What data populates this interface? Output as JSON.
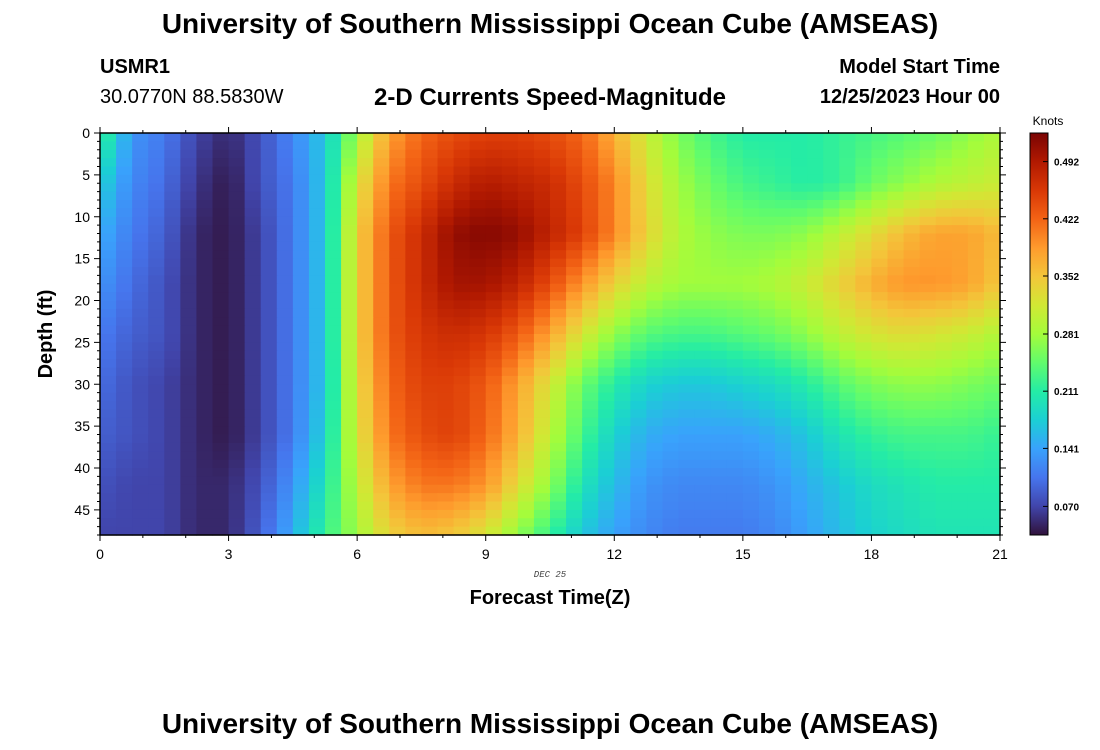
{
  "header": {
    "title": "University of Southern Mississippi Ocean Cube (AMSEAS)",
    "station_id": "USMR1",
    "coordinates": "30.0770N  88.5830W",
    "subtitle": "2-D Currents Speed-Magnitude",
    "model_start_label": "Model Start Time",
    "model_start_value": "12/25/2023 Hour 00"
  },
  "footer": {
    "title_repeat": "University of Southern Mississippi Ocean Cube (AMSEAS)"
  },
  "chart_data": {
    "type": "heatmap",
    "title": "2-D Currents Speed-Magnitude",
    "xlabel": "Forecast Time(Z)",
    "ylabel": "Depth (ft)",
    "x_date_label": "DEC 25",
    "xlim": [
      0,
      21
    ],
    "ylim": [
      0,
      48
    ],
    "x_ticks": [
      0,
      3,
      6,
      9,
      12,
      15,
      18,
      21
    ],
    "y_ticks": [
      0,
      5,
      10,
      15,
      20,
      25,
      30,
      35,
      40,
      45
    ],
    "colorbar": {
      "label": "Knots",
      "range": [
        0.035,
        0.527
      ],
      "ticks": [
        "0.070",
        "0.141",
        "0.211",
        "0.281",
        "0.352",
        "0.422",
        "0.492"
      ],
      "colormap": [
        "#30123b",
        "#4145ab",
        "#4675ed",
        "#39a2fc",
        "#1bcfd4",
        "#24eca6",
        "#61fc6c",
        "#a4fc3b",
        "#d1e834",
        "#f3c63a",
        "#fe9b2d",
        "#f36315",
        "#d93806",
        "#b11901",
        "#7a0403"
      ]
    },
    "times_hr": [
      0,
      0.75,
      1.5,
      2.25,
      3,
      3.75,
      4.5,
      5.25,
      6,
      6.75,
      7.5,
      8.25,
      9,
      9.75,
      10.5,
      11.25,
      12,
      12.75,
      13.5,
      14.25,
      15,
      15.75,
      16.5,
      17.25,
      18,
      18.75,
      19.5,
      20.25,
      21
    ],
    "depths_ft": [
      0,
      6,
      12,
      18,
      24,
      30,
      36,
      42,
      48
    ],
    "speed_knots": [
      [
        0.23,
        0.13,
        0.11,
        0.07,
        0.05,
        0.08,
        0.12,
        0.17,
        0.28,
        0.38,
        0.42,
        0.44,
        0.45,
        0.45,
        0.44,
        0.42,
        0.37,
        0.31,
        0.26,
        0.23,
        0.21,
        0.21,
        0.21,
        0.22,
        0.23,
        0.24,
        0.25,
        0.27,
        0.29
      ],
      [
        0.18,
        0.12,
        0.1,
        0.06,
        0.04,
        0.08,
        0.11,
        0.17,
        0.32,
        0.41,
        0.44,
        0.47,
        0.49,
        0.48,
        0.47,
        0.44,
        0.4,
        0.33,
        0.28,
        0.25,
        0.23,
        0.22,
        0.21,
        0.22,
        0.25,
        0.27,
        0.29,
        0.3,
        0.31
      ],
      [
        0.15,
        0.11,
        0.09,
        0.05,
        0.04,
        0.07,
        0.11,
        0.17,
        0.34,
        0.43,
        0.47,
        0.51,
        0.52,
        0.51,
        0.48,
        0.45,
        0.4,
        0.34,
        0.29,
        0.27,
        0.26,
        0.26,
        0.27,
        0.3,
        0.33,
        0.36,
        0.38,
        0.38,
        0.36
      ],
      [
        0.13,
        0.1,
        0.08,
        0.05,
        0.04,
        0.07,
        0.11,
        0.17,
        0.34,
        0.43,
        0.47,
        0.5,
        0.5,
        0.48,
        0.44,
        0.39,
        0.34,
        0.3,
        0.28,
        0.28,
        0.28,
        0.29,
        0.31,
        0.34,
        0.37,
        0.39,
        0.39,
        0.38,
        0.35
      ],
      [
        0.11,
        0.09,
        0.08,
        0.05,
        0.04,
        0.07,
        0.11,
        0.17,
        0.34,
        0.43,
        0.46,
        0.47,
        0.46,
        0.43,
        0.38,
        0.32,
        0.27,
        0.24,
        0.23,
        0.23,
        0.24,
        0.25,
        0.27,
        0.3,
        0.32,
        0.33,
        0.32,
        0.31,
        0.29
      ],
      [
        0.1,
        0.08,
        0.07,
        0.05,
        0.04,
        0.07,
        0.11,
        0.17,
        0.33,
        0.42,
        0.45,
        0.45,
        0.43,
        0.38,
        0.32,
        0.25,
        0.21,
        0.18,
        0.17,
        0.17,
        0.18,
        0.19,
        0.21,
        0.24,
        0.26,
        0.27,
        0.27,
        0.26,
        0.25
      ],
      [
        0.09,
        0.08,
        0.07,
        0.05,
        0.04,
        0.07,
        0.11,
        0.18,
        0.32,
        0.41,
        0.44,
        0.45,
        0.42,
        0.37,
        0.3,
        0.23,
        0.18,
        0.15,
        0.14,
        0.14,
        0.14,
        0.15,
        0.17,
        0.2,
        0.22,
        0.23,
        0.23,
        0.23,
        0.22
      ],
      [
        0.08,
        0.07,
        0.07,
        0.05,
        0.05,
        0.08,
        0.13,
        0.2,
        0.3,
        0.38,
        0.41,
        0.41,
        0.39,
        0.33,
        0.27,
        0.2,
        0.16,
        0.13,
        0.12,
        0.12,
        0.12,
        0.13,
        0.15,
        0.17,
        0.19,
        0.2,
        0.21,
        0.21,
        0.21
      ],
      [
        0.07,
        0.07,
        0.07,
        0.05,
        0.05,
        0.09,
        0.15,
        0.22,
        0.28,
        0.34,
        0.36,
        0.35,
        0.32,
        0.27,
        0.22,
        0.17,
        0.14,
        0.12,
        0.11,
        0.11,
        0.11,
        0.12,
        0.14,
        0.16,
        0.18,
        0.19,
        0.2,
        0.2,
        0.2
      ]
    ]
  }
}
